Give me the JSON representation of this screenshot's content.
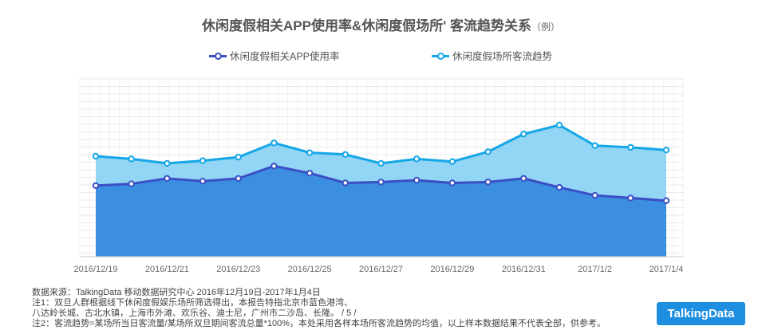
{
  "title": {
    "main": "休闲度假相关APP使用率&休闲度假场所' 客流趋势关系",
    "note": "（例）"
  },
  "chart_data": {
    "type": "area",
    "x": [
      "2016/12/19",
      "2016/12/20",
      "2016/12/21",
      "2016/12/22",
      "2016/12/23",
      "2016/12/24",
      "2016/12/25",
      "2016/12/26",
      "2016/12/27",
      "2016/12/28",
      "2016/12/29",
      "2016/12/30",
      "2016/12/31",
      "2017/1/1",
      "2017/1/2",
      "2017/1/3",
      "2017/1/4"
    ],
    "x_tick_labels": [
      "2016/12/19",
      "2016/12/21",
      "2016/12/23",
      "2016/12/25",
      "2016/12/27",
      "2016/12/29",
      "2016/12/31",
      "2017/1/2",
      "2017/1/4"
    ],
    "series": [
      {
        "name": "休闲度假相关APP使用率",
        "color": "#3a4fc4",
        "fill": "#3b8ee0",
        "values": [
          40,
          41,
          44,
          42.5,
          44,
          51,
          47,
          41.5,
          42,
          43,
          41.5,
          42,
          44,
          39,
          34.5,
          33,
          31.5
        ]
      },
      {
        "name": "休闲度假场所客流趋势",
        "color": "#14a6e6",
        "fill": "#93d5f4",
        "values": [
          56.5,
          55,
          52.5,
          54,
          56,
          64,
          58.5,
          57.5,
          52.5,
          55,
          53.5,
          59,
          69,
          74,
          62.5,
          61.5,
          60
        ]
      }
    ],
    "ylim": [
      0,
      100
    ],
    "y_axis_labels_shown": false,
    "grid": true,
    "legend_position": "top"
  },
  "notes": {
    "source": "数据来源：TalkingData 移动数据研究中心   2016年12月19日-2017年1月4日",
    "note1": "注1：双旦人群根据线下休闲度假娱乐场所筛选得出，本报告特指北京市蓝色港湾、",
    "note1_cont": "八达岭长城、古北水镇，上海市外滩、欢乐谷、迪士尼，广州市二沙岛、长隆。 / 5 /",
    "note2": "注2：客流趋势=某场所当日客流量/某场所双旦期间客流总量*100%，本处采用各样本场所客流趋势的均值，以上样本数据结果不代表全部，供参考。"
  },
  "logo_text": "TalkingData"
}
